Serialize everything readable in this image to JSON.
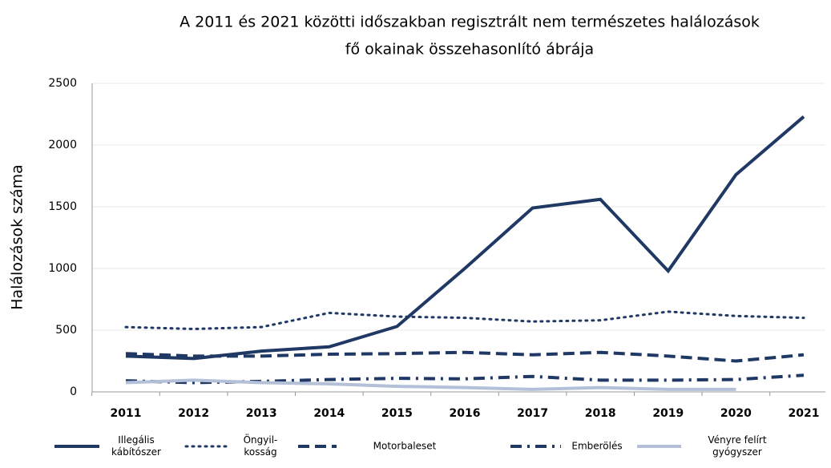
{
  "chart_data": {
    "type": "line",
    "title": [
      "A 2011 és 2021 közötti időszakban regisztrált nem természetes halálozások",
      "fő okainak összehasonlító ábrája"
    ],
    "ylabel": "Halálozások száma",
    "categories": [
      "2011",
      "2012",
      "2013",
      "2014",
      "2015",
      "2016",
      "2017",
      "2018",
      "2019",
      "2020",
      "2021"
    ],
    "series": [
      {
        "name": "Illegális\nkábítószer",
        "color": "#1f3864",
        "style": "solid",
        "values": [
          290,
          270,
          330,
          365,
          530,
          1000,
          1490,
          1560,
          980,
          1760,
          2230
        ]
      },
      {
        "name": "Öngyil-\nkosság",
        "color": "#1f3864",
        "style": "dotted",
        "values": [
          525,
          510,
          525,
          640,
          610,
          600,
          570,
          580,
          650,
          615,
          600
        ]
      },
      {
        "name": "Motorbaleset",
        "color": "#1f3864",
        "style": "dashed",
        "values": [
          310,
          290,
          290,
          305,
          310,
          320,
          300,
          320,
          290,
          250,
          300
        ]
      },
      {
        "name": "Emberölés",
        "color": "#1f3864",
        "style": "dashdot",
        "values": [
          90,
          75,
          85,
          100,
          110,
          105,
          125,
          95,
          95,
          100,
          135
        ]
      },
      {
        "name": "Vényre felírt\ngyógyszer",
        "color": "#b4c0d8",
        "style": "solid",
        "values": [
          75,
          95,
          75,
          65,
          45,
          35,
          20,
          35,
          20,
          20,
          null
        ]
      }
    ],
    "ylim": [
      0,
      2500
    ],
    "yticks": [
      0,
      500,
      1000,
      1500,
      2000,
      2500
    ],
    "grid": true,
    "legend": "bottom"
  }
}
